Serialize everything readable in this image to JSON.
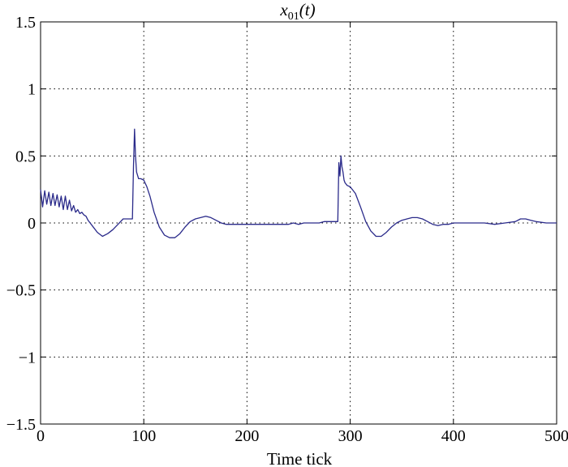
{
  "chart_data": {
    "type": "line",
    "title": {
      "var": "x",
      "subscript": "01",
      "arg": "(t)"
    },
    "xlabel": "Time tick",
    "ylabel": "",
    "xlim": [
      0,
      500
    ],
    "ylim": [
      -1.5,
      1.5
    ],
    "xticks": [
      0,
      100,
      200,
      300,
      400,
      500
    ],
    "yticks": [
      -1.5,
      -1,
      -0.5,
      0,
      0.5,
      1,
      1.5
    ],
    "xtick_labels": [
      "0",
      "100",
      "200",
      "300",
      "400",
      "500"
    ],
    "ytick_labels": [
      "−1.5",
      "−1",
      "−0.5",
      "0",
      "0.5",
      "1",
      "1.5"
    ],
    "grid": true,
    "series": [
      {
        "color": "#2a2a8a",
        "x": [
          0,
          2,
          4,
          6,
          8,
          10,
          12,
          14,
          16,
          18,
          20,
          22,
          24,
          26,
          28,
          30,
          32,
          34,
          36,
          38,
          40,
          42,
          44,
          46,
          48,
          50,
          55,
          60,
          65,
          70,
          75,
          80,
          85,
          89,
          90,
          91,
          92,
          93,
          95,
          97,
          100,
          103,
          106,
          110,
          115,
          120,
          125,
          130,
          135,
          140,
          145,
          150,
          155,
          160,
          165,
          170,
          175,
          180,
          185,
          190,
          195,
          200,
          205,
          210,
          215,
          220,
          225,
          230,
          235,
          240,
          245,
          250,
          255,
          260,
          265,
          270,
          275,
          280,
          285,
          288,
          289,
          290,
          291,
          292,
          293,
          294,
          295,
          297,
          300,
          305,
          310,
          315,
          320,
          325,
          330,
          335,
          340,
          345,
          350,
          355,
          360,
          365,
          370,
          375,
          380,
          385,
          390,
          395,
          400,
          410,
          420,
          430,
          440,
          450,
          460,
          465,
          470,
          475,
          480,
          490,
          500
        ],
        "values": [
          0.25,
          0.12,
          0.24,
          0.14,
          0.23,
          0.13,
          0.22,
          0.13,
          0.21,
          0.12,
          0.2,
          0.1,
          0.2,
          0.1,
          0.17,
          0.09,
          0.13,
          0.08,
          0.1,
          0.07,
          0.08,
          0.06,
          0.05,
          0.02,
          0.0,
          -0.02,
          -0.07,
          -0.1,
          -0.08,
          -0.05,
          -0.01,
          0.03,
          0.03,
          0.03,
          0.42,
          0.7,
          0.5,
          0.38,
          0.33,
          0.33,
          0.32,
          0.27,
          0.2,
          0.08,
          -0.03,
          -0.09,
          -0.11,
          -0.11,
          -0.08,
          -0.03,
          0.01,
          0.03,
          0.04,
          0.05,
          0.04,
          0.02,
          0.0,
          -0.01,
          -0.01,
          -0.01,
          -0.01,
          -0.01,
          -0.01,
          -0.01,
          -0.01,
          -0.01,
          -0.01,
          -0.01,
          -0.01,
          -0.01,
          0.0,
          -0.01,
          0.0,
          0.0,
          0.0,
          0.0,
          0.01,
          0.01,
          0.01,
          0.01,
          0.45,
          0.35,
          0.5,
          0.42,
          0.38,
          0.32,
          0.3,
          0.28,
          0.27,
          0.22,
          0.12,
          0.01,
          -0.06,
          -0.1,
          -0.1,
          -0.07,
          -0.03,
          0.0,
          0.02,
          0.03,
          0.04,
          0.04,
          0.03,
          0.01,
          -0.01,
          -0.02,
          -0.01,
          -0.01,
          0.0,
          0.0,
          0.0,
          0.0,
          -0.01,
          0.0,
          0.01,
          0.03,
          0.03,
          0.02,
          0.01,
          0.0,
          0.0
        ]
      }
    ]
  }
}
